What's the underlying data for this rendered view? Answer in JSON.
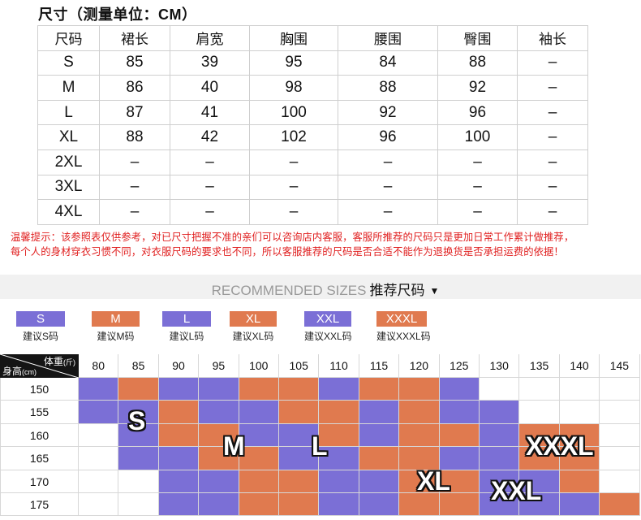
{
  "title": "尺寸（测量单位：CM）",
  "size_table": {
    "headers": [
      "尺码",
      "裙长",
      "肩宽",
      "胸围",
      "腰围",
      "臀围",
      "袖长"
    ],
    "rows": [
      [
        "S",
        "85",
        "39",
        "95",
        "84",
        "88",
        "–"
      ],
      [
        "M",
        "86",
        "40",
        "98",
        "88",
        "92",
        "–"
      ],
      [
        "L",
        "87",
        "41",
        "100",
        "92",
        "96",
        "–"
      ],
      [
        "XL",
        "88",
        "42",
        "102",
        "96",
        "100",
        "–"
      ],
      [
        "2XL",
        "–",
        "–",
        "–",
        "–",
        "–",
        "–"
      ],
      [
        "3XL",
        "–",
        "–",
        "–",
        "–",
        "–",
        "–"
      ],
      [
        "4XL",
        "–",
        "–",
        "–",
        "–",
        "–",
        "–"
      ]
    ]
  },
  "notice": {
    "line1": "温馨提示：该参照表仅供参考，对已尺寸把握不准的亲们可以咨询店内客服，客服所推荐的尺码只是更加日常工作累计做推荐，",
    "line2": "每个人的身材穿衣习惯不同，对衣服尺码的要求也不同，所以客服推荐的尺码是否合适不能作为退换货是否承担运费的依据！"
  },
  "recommended": {
    "title_en": "RECOMMENDED SIZES",
    "title_cn": "推荐尺码",
    "arrow": "▼"
  },
  "legend": [
    {
      "size": "S",
      "caption": "建议S码",
      "color": "#7b6fd6"
    },
    {
      "size": "M",
      "caption": "建议M码",
      "color": "#e07a4f"
    },
    {
      "size": "L",
      "caption": "建议L码",
      "color": "#7b6fd6"
    },
    {
      "size": "XL",
      "caption": "建议XL码",
      "color": "#e07a4f"
    },
    {
      "size": "XXL",
      "caption": "建议XXL码",
      "color": "#7b6fd6"
    },
    {
      "size": "XXXL",
      "caption": "建议XXXL码",
      "color": "#e07a4f"
    }
  ],
  "grid": {
    "corner_weight": "体重",
    "corner_weight_unit": "(斤)",
    "corner_height": "身高",
    "corner_height_unit": "(cm)",
    "weights": [
      "80",
      "85",
      "90",
      "95",
      "100",
      "105",
      "110",
      "115",
      "120",
      "125",
      "130",
      "135",
      "140",
      "145"
    ],
    "heights": [
      "150",
      "155",
      "160",
      "165",
      "170",
      "175"
    ],
    "colors": {
      "P": "#7b6fd6",
      "O": "#e07a4f",
      "W": "#ffffff"
    },
    "cells": [
      "POPPOOPOOPWWWW",
      "PPOPPOOPOPPWWW",
      "WPOOPPOPOOPOOW",
      "WPPOOPPOOPPOOW",
      "WWPPOOPPOOPPOW",
      "WWPPOOPPOOPPPO"
    ],
    "labels": [
      "S",
      "M",
      "L",
      "XL",
      "XXL",
      "XXXL"
    ]
  }
}
